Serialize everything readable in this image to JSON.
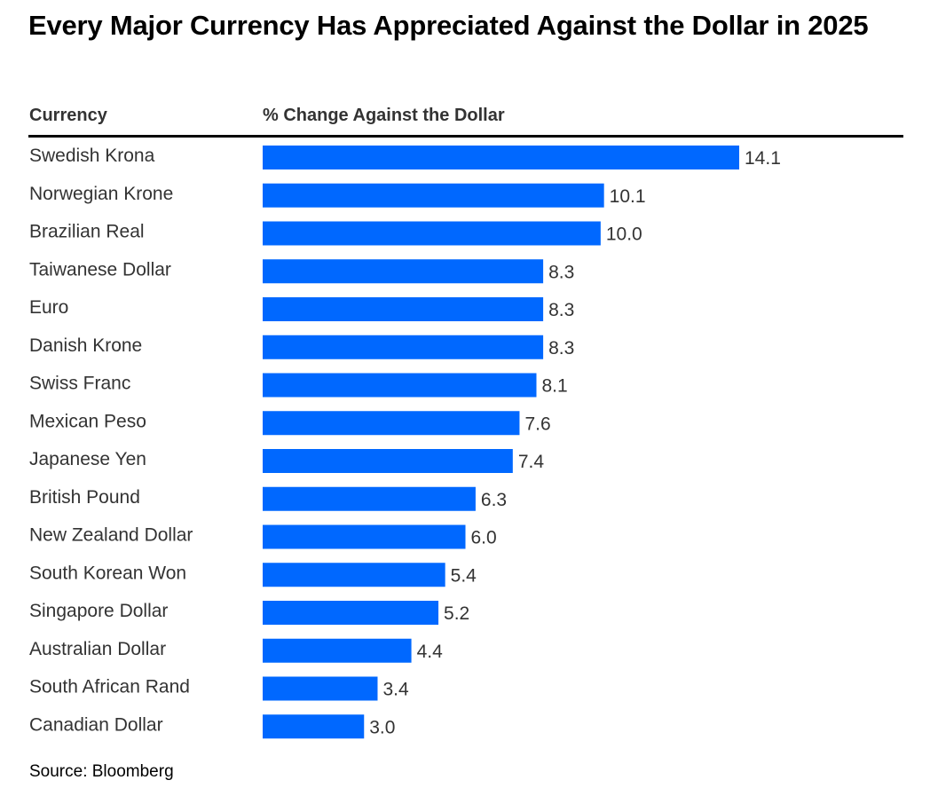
{
  "title": "Every Major Currency Has Appreciated Against the Dollar in 2025",
  "headers": {
    "currency": "Currency",
    "change": "% Change Against the Dollar"
  },
  "source": "Source: Bloomberg",
  "colors": {
    "bar": "#0068FF",
    "text": "#333333",
    "rule": "#000000"
  },
  "chart_data": {
    "type": "bar",
    "orientation": "horizontal",
    "title": "Every Major Currency Has Appreciated Against the Dollar in 2025",
    "xlabel": "% Change Against the Dollar",
    "ylabel": "Currency",
    "xlim": [
      0,
      14.1
    ],
    "grid": false,
    "legend": "none",
    "categories": [
      "Swedish Krona",
      "Norwegian Krone",
      "Brazilian Real",
      "Taiwanese Dollar",
      "Euro",
      "Danish Krone",
      "Swiss Franc",
      "Mexican Peso",
      "Japanese Yen",
      "British Pound",
      "New Zealand Dollar",
      "South Korean Won",
      "Singapore Dollar",
      "Australian Dollar",
      "South African Rand",
      "Canadian Dollar"
    ],
    "values": [
      14.1,
      10.1,
      10.0,
      8.3,
      8.3,
      8.3,
      8.1,
      7.6,
      7.4,
      6.3,
      6.0,
      5.4,
      5.2,
      4.4,
      3.4,
      3.0
    ],
    "value_labels": [
      "14.1",
      "10.1",
      "10.0",
      "8.3",
      "8.3",
      "8.3",
      "8.1",
      "7.6",
      "7.4",
      "6.3",
      "6.0",
      "5.4",
      "5.2",
      "4.4",
      "3.4",
      "3.0"
    ]
  }
}
